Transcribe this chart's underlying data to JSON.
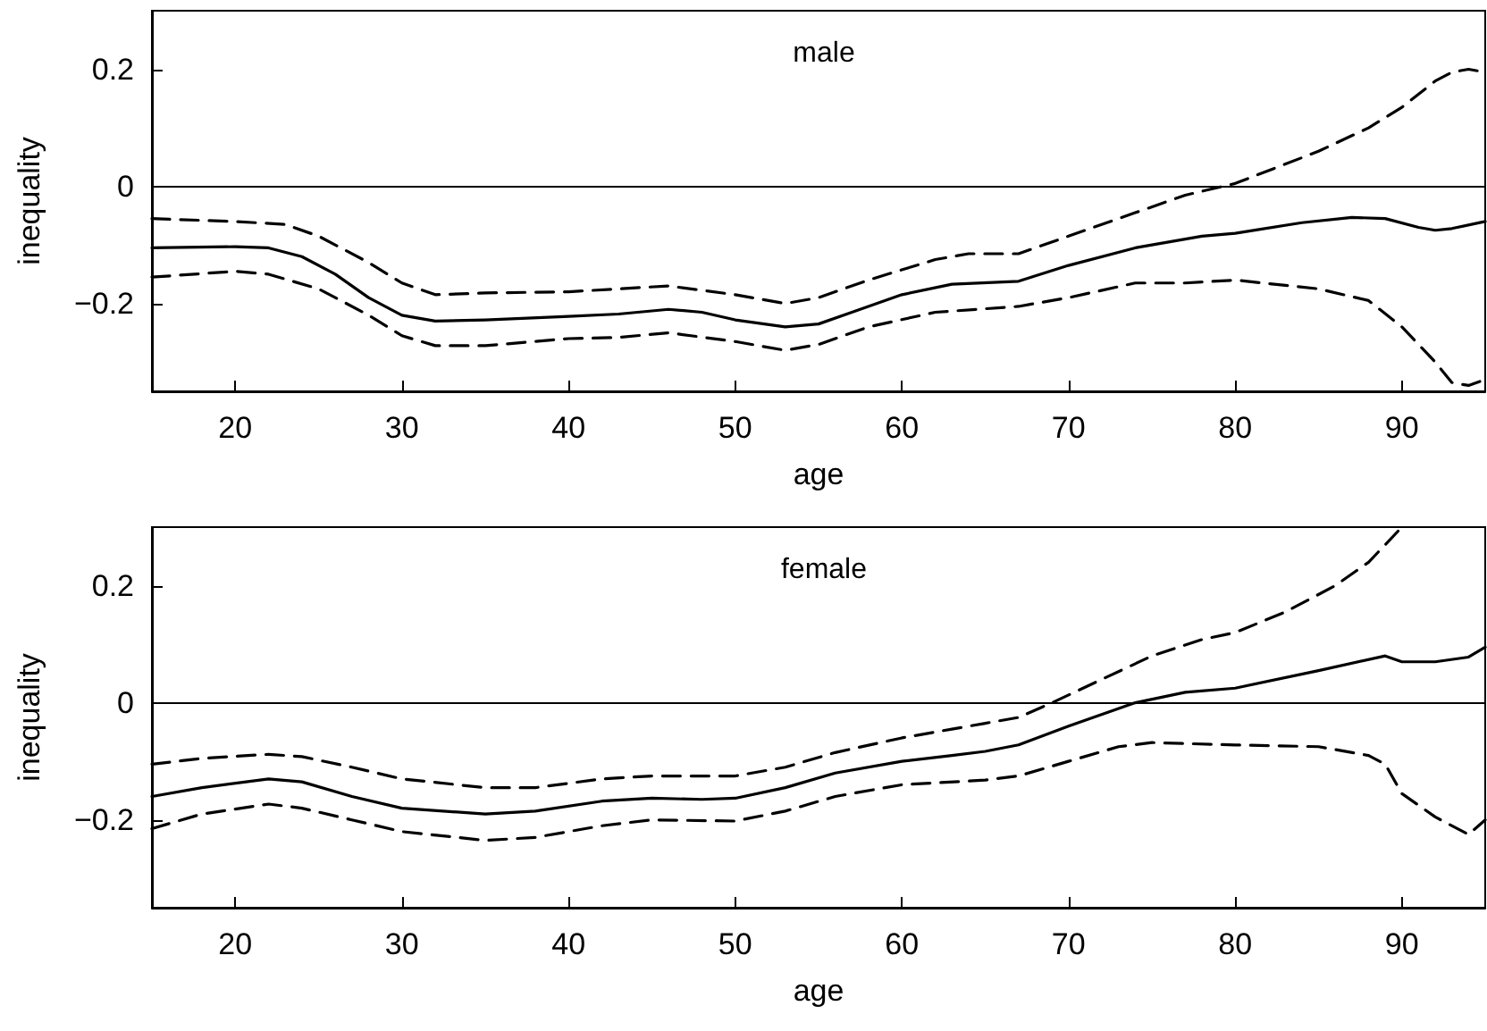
{
  "chart_data": [
    {
      "type": "line",
      "title": "male",
      "xlabel": "age",
      "ylabel": "inequality",
      "xlim": [
        15,
        95
      ],
      "xticks": [
        20,
        30,
        40,
        50,
        60,
        70,
        80,
        90
      ],
      "ylim": [
        -0.35,
        0.3
      ],
      "yticks": [
        -0.2,
        0,
        0.2
      ],
      "grid": false,
      "marker": "none",
      "ref_lines": [
        {
          "axis": "y",
          "value": 0,
          "color": "#000000"
        }
      ],
      "series": [
        {
          "color": "#000000",
          "line_style": "solid",
          "x": [
            15,
            20,
            22,
            24,
            26,
            28,
            30,
            32,
            35,
            40,
            43,
            46,
            48,
            50,
            53,
            55,
            57,
            60,
            63,
            67,
            70,
            74,
            78,
            80,
            84,
            87,
            89,
            91,
            92,
            93,
            95
          ],
          "values": [
            -0.105,
            -0.103,
            -0.105,
            -0.12,
            -0.15,
            -0.19,
            -0.22,
            -0.23,
            -0.228,
            -0.222,
            -0.218,
            -0.21,
            -0.215,
            -0.228,
            -0.24,
            -0.235,
            -0.215,
            -0.185,
            -0.167,
            -0.162,
            -0.135,
            -0.105,
            -0.085,
            -0.08,
            -0.062,
            -0.053,
            -0.055,
            -0.07,
            -0.075,
            -0.072,
            -0.06
          ]
        },
        {
          "color": "#000000",
          "line_style": "dashed",
          "x": [
            15,
            20,
            23,
            25,
            28,
            30,
            32,
            35,
            40,
            46,
            50,
            53,
            55,
            58,
            62,
            64,
            67,
            70,
            74,
            77,
            80,
            85,
            88,
            90,
            92,
            93,
            94,
            95
          ],
          "values": [
            -0.055,
            -0.06,
            -0.065,
            -0.085,
            -0.13,
            -0.165,
            -0.185,
            -0.182,
            -0.18,
            -0.17,
            -0.185,
            -0.2,
            -0.19,
            -0.16,
            -0.125,
            -0.115,
            -0.115,
            -0.085,
            -0.045,
            -0.015,
            0.005,
            0.06,
            0.1,
            0.135,
            0.18,
            0.195,
            0.2,
            0.195
          ]
        },
        {
          "color": "#000000",
          "line_style": "dashed",
          "x": [
            15,
            20,
            22,
            25,
            28,
            30,
            32,
            35,
            40,
            43,
            46,
            50,
            53,
            55,
            58,
            62,
            67,
            70,
            74,
            77,
            80,
            85,
            88,
            90,
            92,
            93,
            94,
            95
          ],
          "values": [
            -0.155,
            -0.145,
            -0.15,
            -0.175,
            -0.22,
            -0.255,
            -0.272,
            -0.272,
            -0.26,
            -0.258,
            -0.25,
            -0.265,
            -0.28,
            -0.27,
            -0.24,
            -0.215,
            -0.205,
            -0.19,
            -0.165,
            -0.165,
            -0.16,
            -0.175,
            -0.195,
            -0.24,
            -0.3,
            -0.335,
            -0.34,
            -0.33
          ]
        }
      ]
    },
    {
      "type": "line",
      "title": "female",
      "xlabel": "age",
      "ylabel": "inequality",
      "xlim": [
        15,
        95
      ],
      "xticks": [
        20,
        30,
        40,
        50,
        60,
        70,
        80,
        90
      ],
      "ylim": [
        -0.35,
        0.3
      ],
      "yticks": [
        -0.2,
        0,
        0.2
      ],
      "grid": false,
      "marker": "none",
      "ref_lines": [
        {
          "axis": "y",
          "value": 0,
          "color": "#000000"
        }
      ],
      "series": [
        {
          "color": "#000000",
          "line_style": "solid",
          "x": [
            15,
            18,
            22,
            24,
            27,
            30,
            35,
            38,
            42,
            45,
            48,
            50,
            53,
            56,
            60,
            63,
            65,
            67,
            70,
            74,
            77,
            80,
            85,
            89,
            90,
            92,
            94,
            95
          ],
          "values": [
            -0.16,
            -0.145,
            -0.13,
            -0.135,
            -0.16,
            -0.18,
            -0.19,
            -0.185,
            -0.168,
            -0.163,
            -0.165,
            -0.163,
            -0.145,
            -0.12,
            -0.1,
            -0.09,
            -0.083,
            -0.072,
            -0.04,
            0.0,
            0.018,
            0.025,
            0.055,
            0.08,
            0.07,
            0.07,
            0.078,
            0.095
          ]
        },
        {
          "color": "#000000",
          "line_style": "dashed",
          "x": [
            15,
            18,
            22,
            24,
            27,
            30,
            35,
            38,
            42,
            45,
            50,
            53,
            56,
            60,
            63,
            65,
            67,
            69,
            72,
            75,
            78,
            80,
            83,
            86,
            88,
            90
          ],
          "values": [
            -0.105,
            -0.095,
            -0.088,
            -0.092,
            -0.11,
            -0.13,
            -0.145,
            -0.145,
            -0.13,
            -0.125,
            -0.125,
            -0.11,
            -0.085,
            -0.06,
            -0.045,
            -0.035,
            -0.025,
            0.0,
            0.04,
            0.08,
            0.108,
            0.12,
            0.155,
            0.2,
            0.24,
            0.3
          ]
        },
        {
          "color": "#000000",
          "line_style": "dashed",
          "x": [
            15,
            18,
            22,
            24,
            27,
            30,
            35,
            38,
            42,
            45,
            50,
            53,
            56,
            60,
            65,
            67,
            70,
            73,
            75,
            80,
            85,
            88,
            89,
            90,
            92,
            94,
            95
          ],
          "values": [
            -0.215,
            -0.19,
            -0.173,
            -0.18,
            -0.2,
            -0.22,
            -0.235,
            -0.23,
            -0.21,
            -0.2,
            -0.202,
            -0.185,
            -0.16,
            -0.14,
            -0.132,
            -0.125,
            -0.1,
            -0.075,
            -0.068,
            -0.072,
            -0.075,
            -0.09,
            -0.105,
            -0.155,
            -0.195,
            -0.225,
            -0.2
          ]
        }
      ]
    }
  ]
}
